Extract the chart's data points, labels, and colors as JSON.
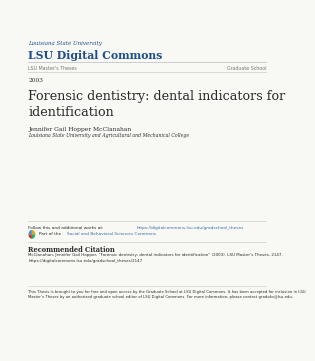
{
  "bg_color": "#f8f8f5",
  "lsu_small": "Louisiana State University",
  "lsu_large": "LSU Digital Commons",
  "left_nav": "LSU Master’s Theses",
  "right_nav": "Graduate School",
  "year": "2003",
  "title": "Forensic dentistry: dental indicators for\nidentification",
  "author": "Jennifer Gail Hopper McClanahan",
  "institution": "Louisiana State University and Agricultural and Mechanical College",
  "follow_text": "Follow this and additional works at: ",
  "follow_link": "https://digitalcommons.lsu.edu/gradschool_theses",
  "part_text": "Part of the ",
  "part_link": "Social and Behavioral Sciences Commons",
  "rec_citation_header": "Recommended Citation",
  "rec_citation_body": "McClanahan, Jennifer Gail Hopper, “Forensic dentistry: dental indicators for identification” (2003). LSU Master’s Theses. 2147.\nhttps://digitalcommons.lsu.edu/gradschool_theses/2147",
  "footer": "This Thesis is brought to you for free and open access by the Graduate School at LSU Digital Commons. It has been accepted for inclusion in LSU\nMaster’s Theses by an authorized graduate school editor of LSU Digital Commons. For more information, please contact gradoks@lsu.edu.",
  "blue_header": "#1f4e8c",
  "blue_link": "#3a6ea8",
  "text_dark": "#2a2a2a",
  "text_gray": "#777777",
  "line_color": "#cccccc",
  "icon_colors": [
    "#e8a020",
    "#4a90d9",
    "#c0392b",
    "#27ae60"
  ],
  "lm": 0.07,
  "rm": 0.97
}
